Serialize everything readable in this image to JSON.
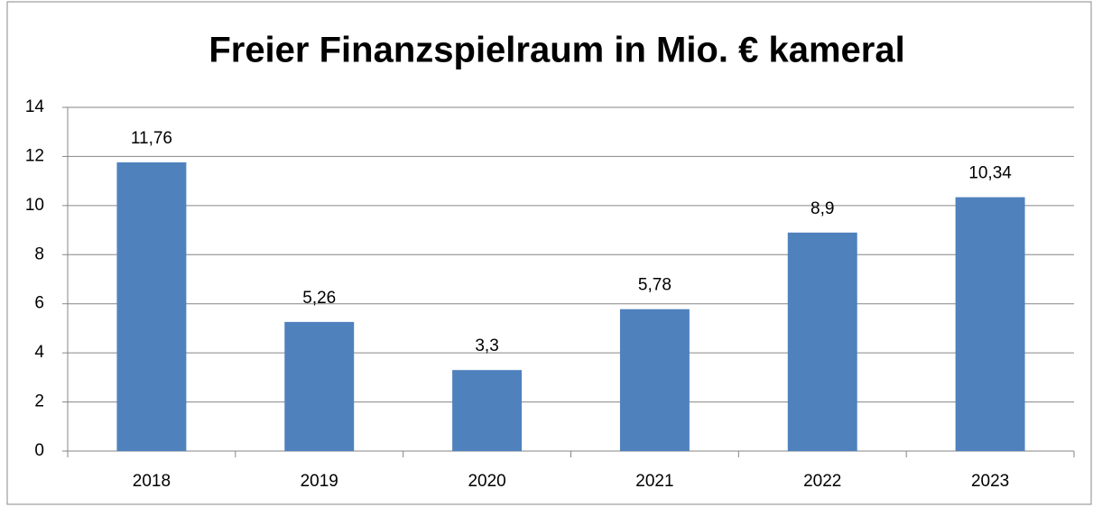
{
  "chart_data": {
    "type": "bar",
    "title": "Freier Finanzspielraum in Mio. € kameral",
    "categories": [
      "2018",
      "2019",
      "2020",
      "2021",
      "2022",
      "2023"
    ],
    "values": [
      11.76,
      5.26,
      3.3,
      5.78,
      8.9,
      10.34
    ],
    "value_labels": [
      "11,76",
      "5,26",
      "3,3",
      "5,78",
      "8,9",
      "10,34"
    ],
    "color": "#4f81bd",
    "ylim": [
      0,
      14
    ],
    "yticks": [
      0,
      2,
      4,
      6,
      8,
      10,
      12,
      14
    ],
    "grid": true
  }
}
